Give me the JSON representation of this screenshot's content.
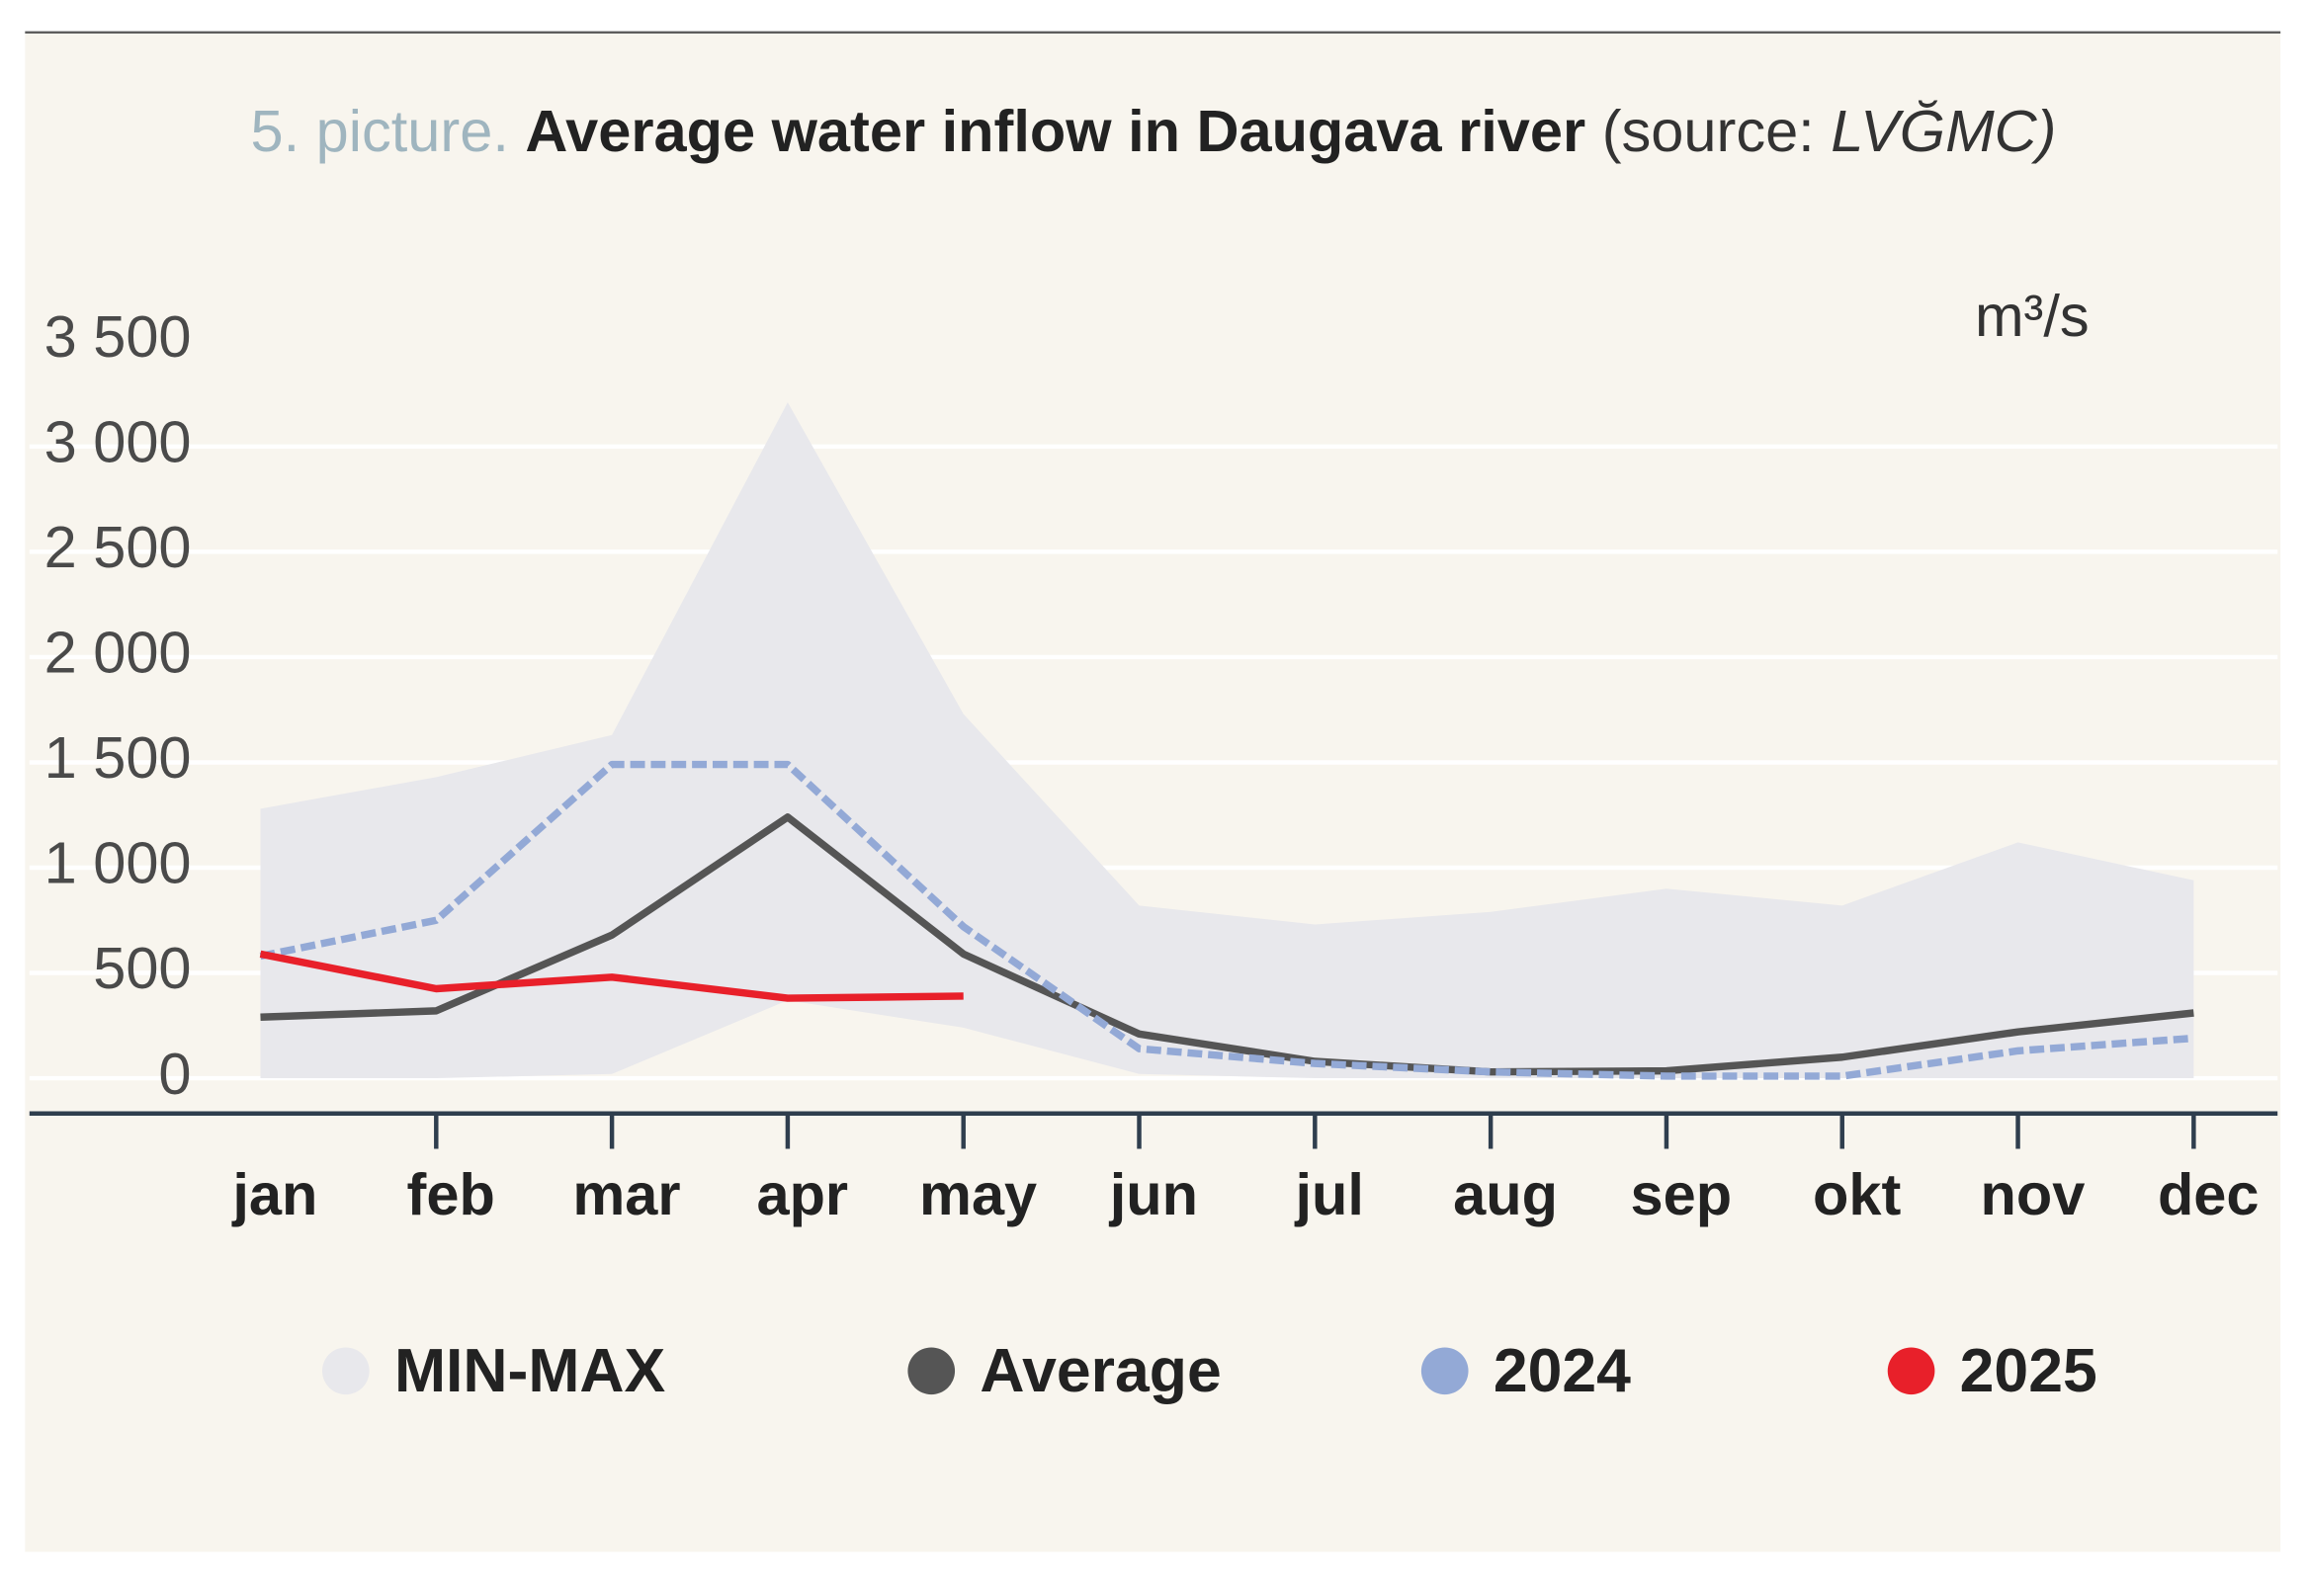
{
  "chart_data": {
    "type": "line",
    "title_prefix": "5. picture.",
    "title": "Average water inflow in Daugava river",
    "source_prefix": "(source:",
    "source": "LVĞMC)",
    "y_unit": "m³/s",
    "categories": [
      "jan",
      "feb",
      "mar",
      "apr",
      "may",
      "jun",
      "jul",
      "aug",
      "sep",
      "okt",
      "nov",
      "dec"
    ],
    "range": {
      "name": "MIN-MAX",
      "color": "#e8e8ec",
      "max": [
        1280,
        1430,
        1630,
        3210,
        1730,
        820,
        730,
        790,
        900,
        820,
        1120,
        940
      ],
      "min": [
        0,
        0,
        20,
        370,
        240,
        20,
        0,
        0,
        0,
        0,
        0,
        0
      ]
    },
    "series": [
      {
        "name": "Average",
        "color": "#555555",
        "values": [
          290,
          320,
          680,
          1240,
          590,
          210,
          80,
          30,
          35,
          100,
          220,
          310
        ]
      },
      {
        "name": "2024",
        "color": "#93a9d6",
        "dashed": true,
        "values": [
          580,
          750,
          1490,
          1490,
          720,
          140,
          70,
          30,
          10,
          10,
          130,
          190
        ]
      },
      {
        "name": "2025",
        "color": "#e8202a",
        "values": [
          590,
          425,
          480,
          380,
          390,
          null,
          null,
          null,
          null,
          null,
          null,
          null
        ]
      }
    ],
    "ylim": [
      0,
      3500
    ],
    "yticks": [
      {
        "value": 0,
        "label": "0"
      },
      {
        "value": 500,
        "label": "500"
      },
      {
        "value": 1000,
        "label": "1 000"
      },
      {
        "value": 1500,
        "label": "1 500"
      },
      {
        "value": 2000,
        "label": "2 000"
      },
      {
        "value": 2500,
        "label": "2 500"
      },
      {
        "value": 3000,
        "label": "3 000"
      },
      {
        "value": 3500,
        "label": "3 500"
      }
    ],
    "grid": true
  }
}
